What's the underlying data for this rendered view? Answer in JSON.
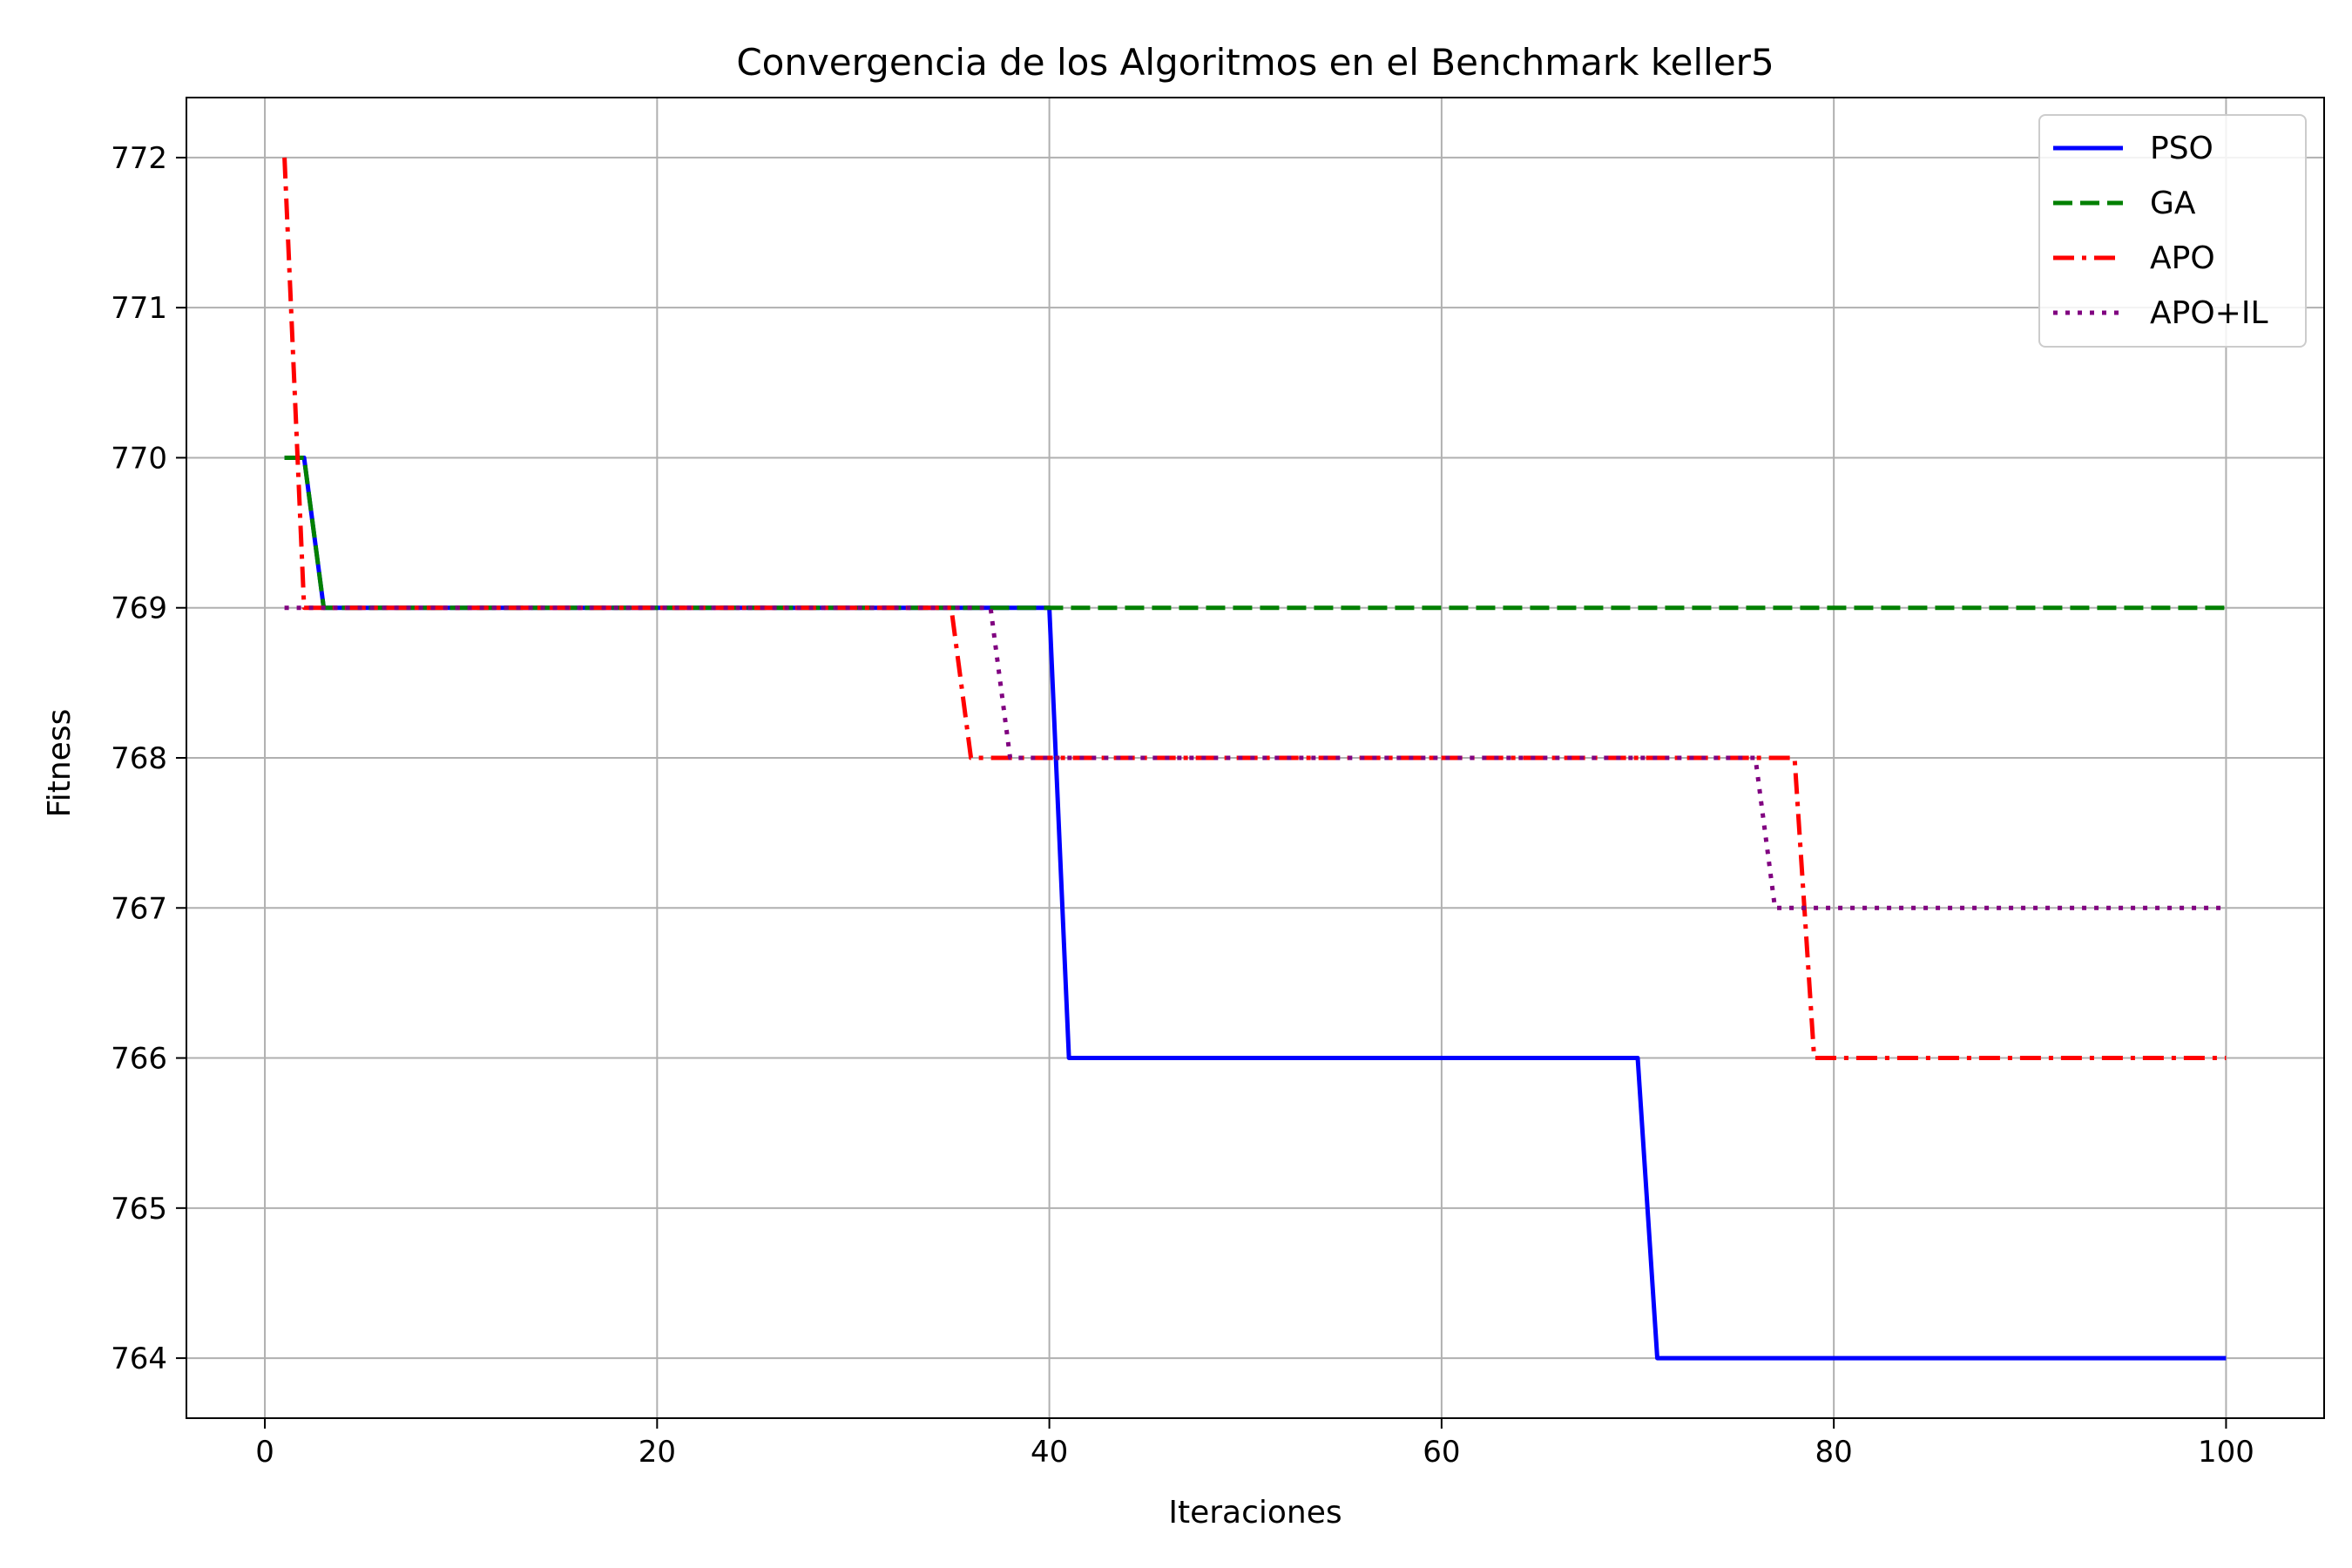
{
  "chart_data": {
    "type": "line",
    "title": "Convergencia de los Algoritmos en el Benchmark keller5",
    "xlabel": "Iteraciones",
    "ylabel": "Fitness",
    "xlim": [
      -4,
      105
    ],
    "ylim": [
      763.6,
      772.4
    ],
    "xticks": [
      0,
      20,
      40,
      60,
      80,
      100
    ],
    "yticks": [
      764,
      765,
      766,
      767,
      768,
      769,
      770,
      771,
      772
    ],
    "grid": true,
    "legend_position": "top-right",
    "series": [
      {
        "name": "PSO",
        "color": "#0000ff",
        "style": "solid",
        "x": [
          1,
          2,
          3,
          40,
          41,
          70,
          71,
          100
        ],
        "y": [
          770,
          770,
          769,
          769,
          766,
          766,
          764,
          764
        ]
      },
      {
        "name": "GA",
        "color": "#008000",
        "style": "dashed",
        "x": [
          1,
          2,
          3,
          100
        ],
        "y": [
          770,
          770,
          769,
          769
        ]
      },
      {
        "name": "APO",
        "color": "#ff0000",
        "style": "dashdot",
        "x": [
          1,
          2,
          3,
          35,
          36,
          78,
          79,
          100
        ],
        "y": [
          772,
          769,
          769,
          769,
          768,
          768,
          766,
          766
        ]
      },
      {
        "name": "APO+IL",
        "color": "#800080",
        "style": "dotted",
        "x": [
          1,
          37,
          38,
          76,
          77,
          100
        ],
        "y": [
          769,
          769,
          768,
          768,
          767,
          767
        ]
      }
    ]
  }
}
